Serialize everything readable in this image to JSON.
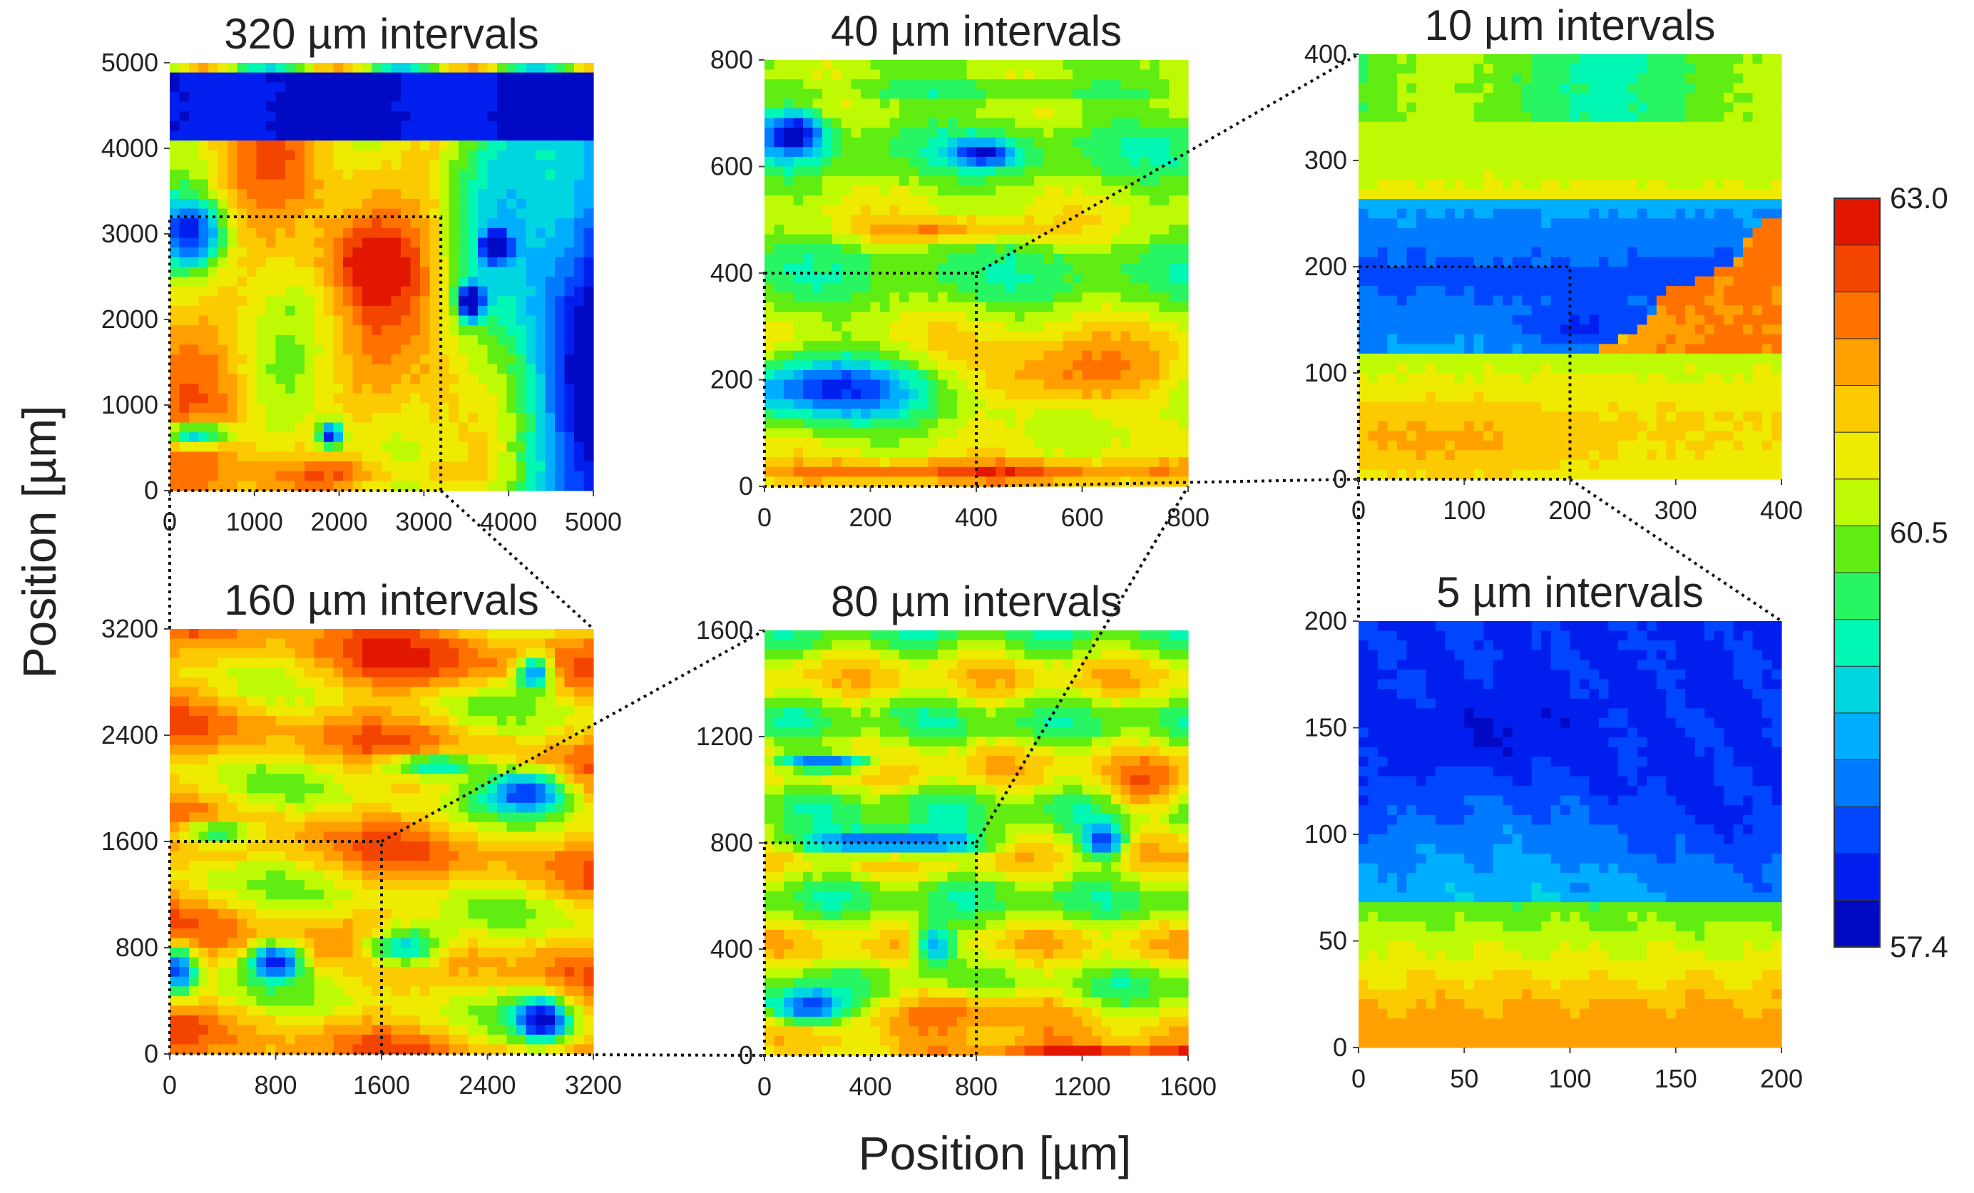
{
  "chart_data": {
    "type": "heatmap",
    "xlabel": "Position [µm]",
    "ylabel": "Position [µm]",
    "colorbar": {
      "min": 57.4,
      "max": 63.0,
      "mid": 60.5,
      "labels": [
        "63.0",
        "60.5",
        "57.4"
      ],
      "levels": 16,
      "colormap": "jet"
    },
    "panels": [
      {
        "id": "p320",
        "title": "320 µm intervals",
        "xlim": [
          0,
          5000
        ],
        "ylim": [
          0,
          5000
        ],
        "xticks": [
          "0",
          "1000",
          "2000",
          "3000",
          "4000",
          "5000"
        ],
        "yticks": [
          "0",
          "1000",
          "2000",
          "3000",
          "4000",
          "5000"
        ],
        "zoom_region": {
          "x": [
            0,
            3200
          ],
          "y": [
            0,
            3200
          ]
        }
      },
      {
        "id": "p40",
        "title": "40 µm intervals",
        "xlim": [
          0,
          800
        ],
        "ylim": [
          0,
          800
        ],
        "xticks": [
          "0",
          "200",
          "400",
          "600",
          "800"
        ],
        "yticks": [
          "0",
          "200",
          "400",
          "600",
          "800"
        ],
        "zoom_region": {
          "x": [
            0,
            400
          ],
          "y": [
            0,
            400
          ]
        }
      },
      {
        "id": "p10",
        "title": "10 µm intervals",
        "xlim": [
          0,
          400
        ],
        "ylim": [
          0,
          400
        ],
        "xticks": [
          "0",
          "100",
          "200",
          "300",
          "400"
        ],
        "yticks": [
          "0",
          "100",
          "200",
          "300",
          "400"
        ],
        "zoom_region": {
          "x": [
            0,
            200
          ],
          "y": [
            0,
            200
          ]
        }
      },
      {
        "id": "p160",
        "title": "160 µm intervals",
        "xlim": [
          0,
          3200
        ],
        "ylim": [
          0,
          3200
        ],
        "xticks": [
          "0",
          "800",
          "1600",
          "2400",
          "3200"
        ],
        "yticks": [
          "0",
          "800",
          "1600",
          "2400",
          "3200"
        ],
        "zoom_region": {
          "x": [
            0,
            1600
          ],
          "y": [
            0,
            1600
          ]
        }
      },
      {
        "id": "p80",
        "title": "80 µm intervals",
        "xlim": [
          0,
          1600
        ],
        "ylim": [
          0,
          1600
        ],
        "xticks": [
          "0",
          "400",
          "800",
          "1200",
          "1600"
        ],
        "yticks": [
          "0",
          "400",
          "800",
          "1200",
          "1600"
        ],
        "zoom_region": {
          "x": [
            0,
            800
          ],
          "y": [
            0,
            800
          ]
        }
      },
      {
        "id": "p5",
        "title": "5 µm intervals",
        "xlim": [
          0,
          200
        ],
        "ylim": [
          0,
          200
        ],
        "xticks": [
          "0",
          "50",
          "100",
          "150",
          "200"
        ],
        "yticks": [
          "0",
          "50",
          "100",
          "150",
          "200"
        ]
      }
    ]
  }
}
